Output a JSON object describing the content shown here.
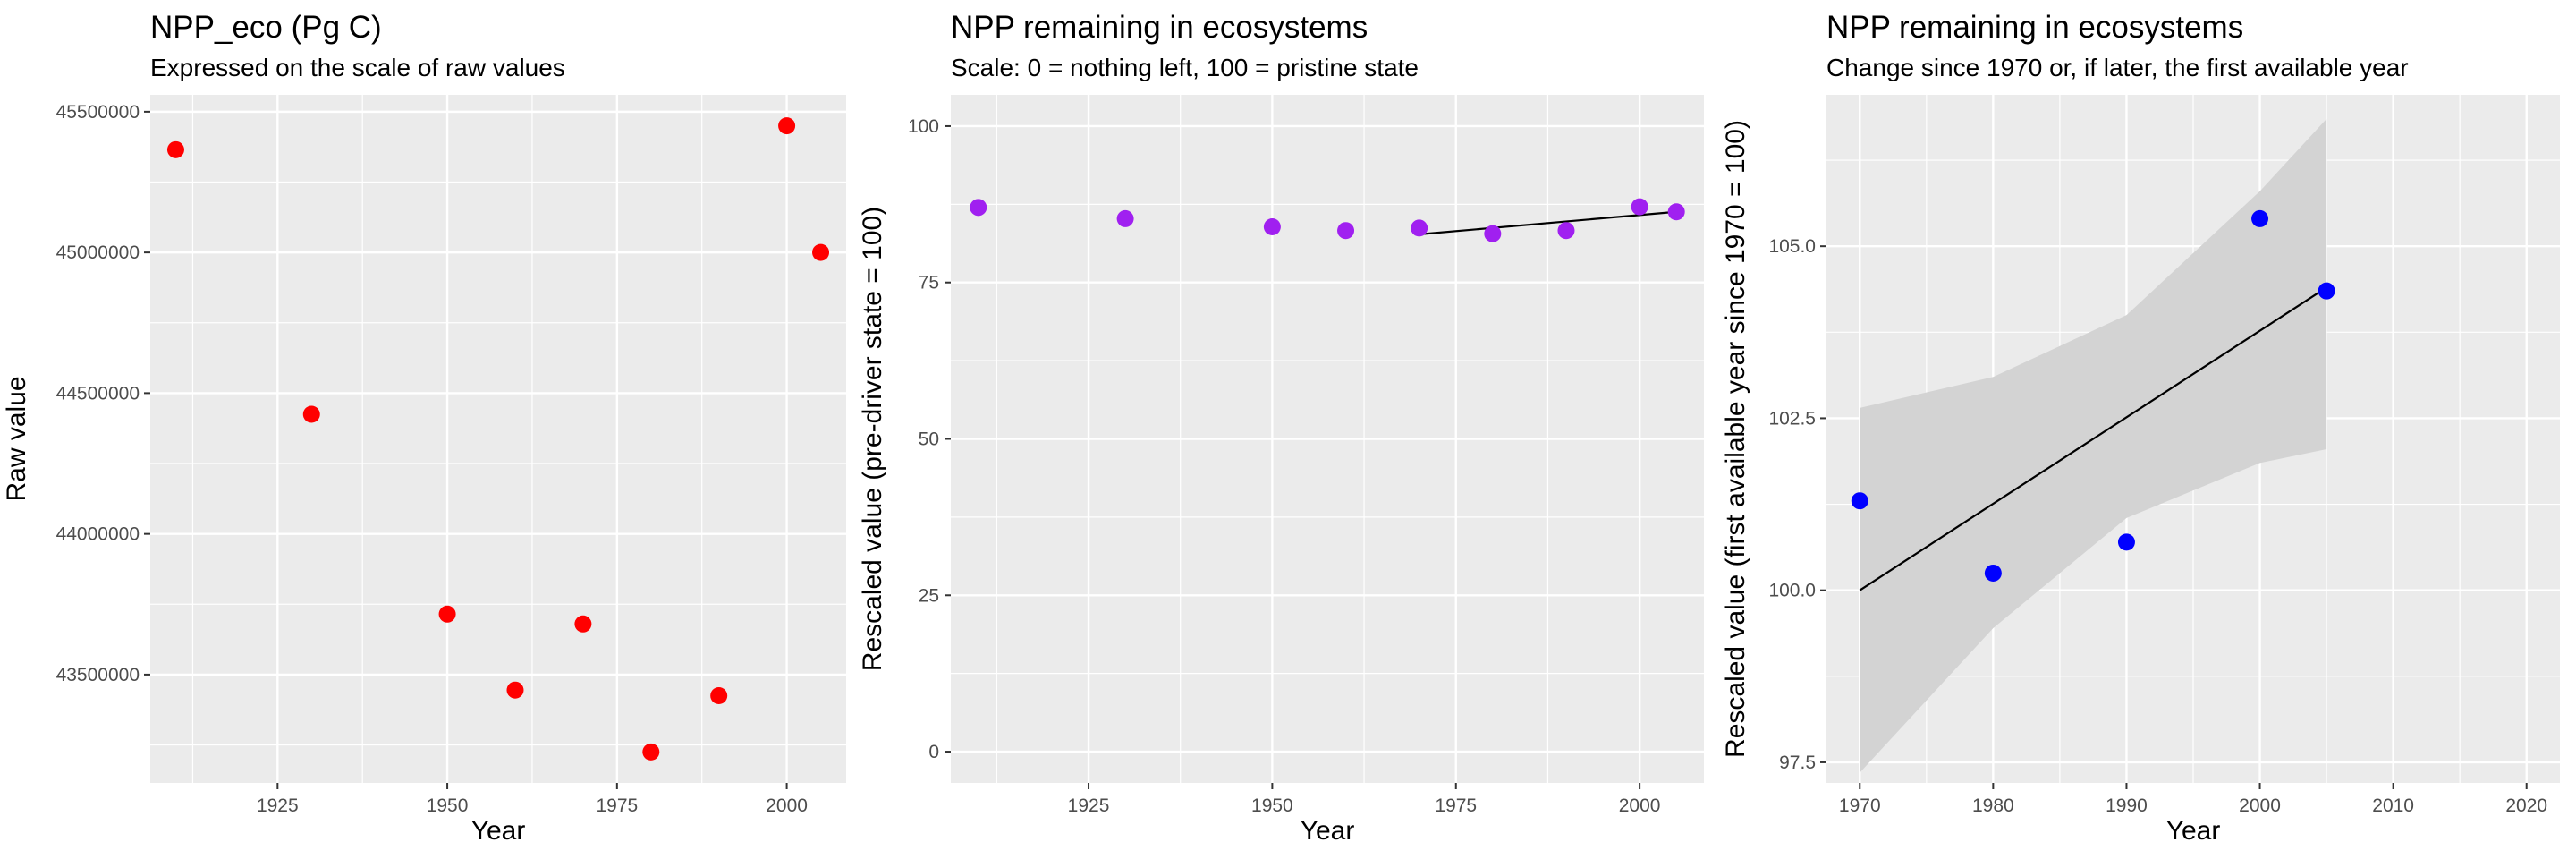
{
  "chart_data": [
    {
      "type": "scatter",
      "title": "NPP_eco (Pg C)",
      "subtitle": "Expressed on the scale of raw values",
      "xlabel": "Year",
      "ylabel": "Raw value",
      "xlim": [
        1906.25,
        2008.75
      ],
      "ylim": [
        43115000,
        45560000
      ],
      "x_ticks": [
        1925,
        1950,
        1975,
        2000
      ],
      "x_tick_labels": [
        "1925",
        "1950",
        "1975",
        "2000"
      ],
      "y_ticks": [
        43500000,
        44000000,
        44500000,
        45000000,
        45500000
      ],
      "y_tick_labels": [
        "43500000",
        "44000000",
        "44500000",
        "45000000",
        "45500000"
      ],
      "point_color": "#ff0000",
      "grid": true,
      "points": [
        {
          "x": 1910,
          "y": 45365000
        },
        {
          "x": 1930,
          "y": 44425000
        },
        {
          "x": 1950,
          "y": 43715000
        },
        {
          "x": 1960,
          "y": 43445000
        },
        {
          "x": 1970,
          "y": 43680000
        },
        {
          "x": 1980,
          "y": 43225000
        },
        {
          "x": 1990,
          "y": 43425000
        },
        {
          "x": 2000,
          "y": 45450000
        },
        {
          "x": 2005,
          "y": 45000000
        }
      ]
    },
    {
      "type": "scatter",
      "title": "NPP remaining in ecosystems",
      "subtitle": "Scale: 0 = nothing left, 100 = pristine state",
      "xlabel": "Year",
      "ylabel": "Rescaled value (pre-driver state = 100)",
      "xlim": [
        1906.25,
        2008.75
      ],
      "ylim": [
        -5,
        105
      ],
      "x_ticks": [
        1925,
        1950,
        1975,
        2000
      ],
      "x_tick_labels": [
        "1925",
        "1950",
        "1975",
        "2000"
      ],
      "y_ticks": [
        0,
        25,
        50,
        75,
        100
      ],
      "y_tick_labels": [
        "0",
        "25",
        "50",
        "75",
        "100"
      ],
      "point_color": "#a020f0",
      "grid": true,
      "points": [
        {
          "x": 1910,
          "y": 87
        },
        {
          "x": 1930,
          "y": 85.2
        },
        {
          "x": 1950,
          "y": 83.9
        },
        {
          "x": 1960,
          "y": 83.3
        },
        {
          "x": 1970,
          "y": 83.7
        },
        {
          "x": 1980,
          "y": 82.8
        },
        {
          "x": 1990,
          "y": 83.3
        },
        {
          "x": 2000,
          "y": 87.1
        },
        {
          "x": 2005,
          "y": 86.3
        }
      ],
      "trend_line": [
        [
          1970,
          82.7
        ],
        [
          2005,
          86.3
        ]
      ],
      "trend_color": "#000000"
    },
    {
      "type": "scatter",
      "title": "NPP remaining in ecosystems",
      "subtitle": "Change since 1970 or, if later, the first available year",
      "xlabel": "Year",
      "ylabel": "Rescaled value (first available year since 1970 = 100)",
      "xlim": [
        1967.5,
        2022.5
      ],
      "ylim": [
        97.2,
        107.2
      ],
      "x_ticks": [
        1970,
        1980,
        1990,
        2000,
        2010,
        2020
      ],
      "x_tick_labels": [
        "1970",
        "1980",
        "1990",
        "2000",
        "2010",
        "2020"
      ],
      "y_ticks": [
        97.5,
        100,
        102.5,
        105
      ],
      "y_tick_labels": [
        "97.5",
        "100.0",
        "102.5",
        "105.0"
      ],
      "point_color": "#0000ff",
      "grid": true,
      "points": [
        {
          "x": 1970,
          "y": 101.3
        },
        {
          "x": 1980,
          "y": 100.25
        },
        {
          "x": 1990,
          "y": 100.7
        },
        {
          "x": 2000,
          "y": 105.4
        },
        {
          "x": 2005,
          "y": 104.35
        }
      ],
      "trend_line": [
        [
          1970,
          100
        ],
        [
          2005,
          104.4
        ]
      ],
      "trend_color": "#000000",
      "ribbon": {
        "x": [
          1970,
          1980,
          1990,
          2000,
          2005
        ],
        "lower": [
          97.35,
          99.45,
          101.05,
          101.85,
          102.05
        ],
        "upper": [
          102.65,
          103.1,
          104.0,
          105.8,
          106.85
        ]
      },
      "ribbon_color": "#d3d3d3"
    }
  ]
}
